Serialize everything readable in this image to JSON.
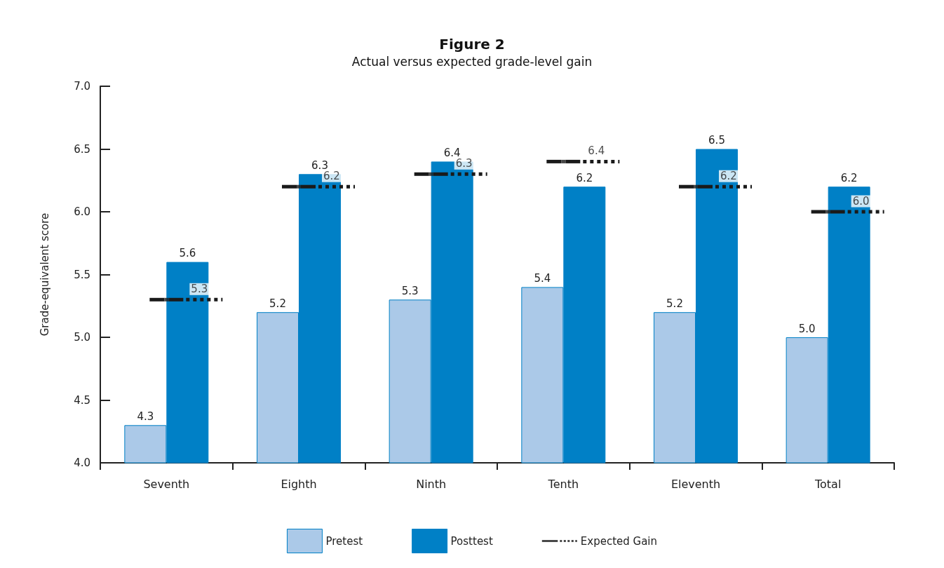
{
  "chart_data": {
    "type": "bar",
    "title": "Figure 2",
    "subtitle": "Actual versus expected grade-level gain",
    "ylabel": "Grade-equivalent score",
    "categories": [
      "Seventh",
      "Eighth",
      "Ninth",
      "Tenth",
      "Eleventh",
      "Total"
    ],
    "series": [
      {
        "name": "Pretest",
        "color": "#abc9e8",
        "values": [
          4.3,
          5.2,
          5.3,
          5.4,
          5.2,
          5.0
        ],
        "value_labels": [
          "4.3",
          "5.2",
          "5.3",
          "5.4",
          "5.2",
          "5.0"
        ]
      },
      {
        "name": "Posttest",
        "color": "#0080c6",
        "values": [
          5.6,
          6.3,
          6.4,
          6.2,
          6.5,
          6.2
        ],
        "value_labels": [
          "5.6",
          "6.3",
          "6.4",
          "6.2",
          "6.5",
          "6.2"
        ]
      },
      {
        "name": "Expected Gain",
        "type": "scatter",
        "marker": "square",
        "color": "#1a1a1a",
        "values": [
          5.3,
          6.2,
          6.3,
          6.4,
          6.2,
          6.0
        ],
        "value_labels": [
          "5.3",
          "6.2",
          "6.3",
          "6.4",
          "6.2",
          "6.0"
        ]
      }
    ],
    "ylim": [
      4.0,
      7.0
    ],
    "yticks": [
      {
        "value": 4,
        "label": "4.0"
      },
      {
        "value": 4.5,
        "label": "4.5"
      },
      {
        "value": 5,
        "label": "5.0"
      },
      {
        "value": 5.5,
        "label": "5.5"
      },
      {
        "value": 6,
        "label": "6.0"
      },
      {
        "value": 6.5,
        "label": "6.5"
      },
      {
        "value": 7,
        "label": "7.0"
      }
    ],
    "grid": false,
    "legend": "bottom"
  }
}
